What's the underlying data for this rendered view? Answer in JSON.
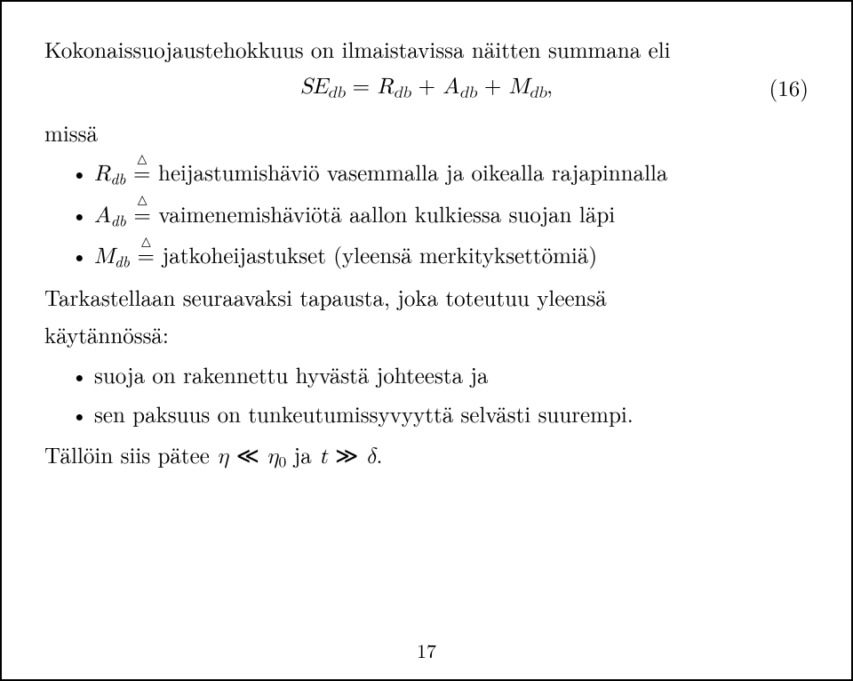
{
  "intro": "Kokonaissuojaustehokkuus on ilmaistavissa näitten summana eli",
  "equation": {
    "lhs_var": "SE",
    "lhs_sub": "db",
    "eq": " = ",
    "r_var": "R",
    "r_sub": "db",
    "plus1": " + ",
    "a_var": "A",
    "a_sub": "db",
    "plus2": " + ",
    "m_var": "M",
    "m_sub": "db",
    "comma": ",",
    "number": "(16)"
  },
  "missa": "missä",
  "defs": [
    {
      "var": "R",
      "sub": "db",
      "text": " heijastumishäviö vasemmalla ja oikealla rajapinnalla"
    },
    {
      "var": "A",
      "sub": "db",
      "text": " vaimenemishäviötä aallon kulkiessa suojan läpi"
    },
    {
      "var": "M",
      "sub": "db",
      "text": " jatkoheijastukset (yleensä merkityksettömiä)"
    }
  ],
  "tarkastellaan_1": "Tarkastellaan seuraavaksi tapausta, joka toteutuu yleensä",
  "tarkastellaan_2": "käytännössä:",
  "conds": [
    "suoja on rakennettu hyvästä johteesta ja",
    "sen paksuus on tunkeutumissyvyyttä selvästi suurempi."
  ],
  "tail": {
    "prefix": "Tällöin siis pätee ",
    "eta": "η",
    "ll": " ≪ ",
    "eta0_var": "η",
    "eta0_sub": "0",
    "mid": " ja ",
    "t": "t",
    "gg": " ≫ ",
    "delta": "δ",
    "period": "."
  },
  "pagenum": "17"
}
